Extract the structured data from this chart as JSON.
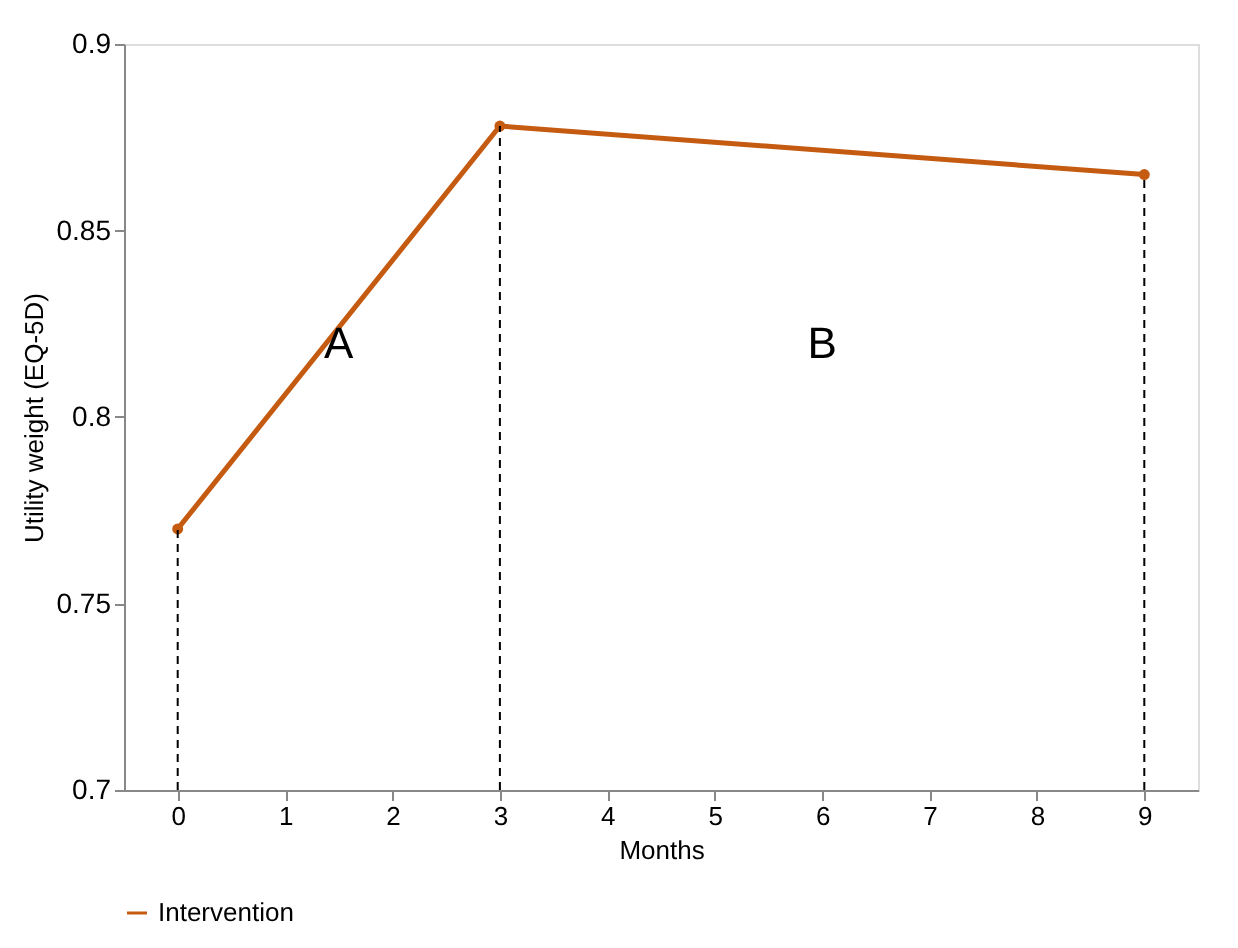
{
  "chart_data": {
    "type": "line",
    "xlabel": "Months",
    "ylabel": "Utility weight (EQ-5D)",
    "series": [
      {
        "name": "Intervention",
        "color": "#c55a11",
        "x": [
          0,
          3,
          9
        ],
        "values": [
          0.77,
          0.878,
          0.865
        ]
      }
    ],
    "xlim": [
      -0.5,
      9.5
    ],
    "xticks": [
      0,
      1,
      2,
      3,
      4,
      5,
      6,
      7,
      8,
      9
    ],
    "ylim": [
      0.7,
      0.9
    ],
    "yticks": [
      0.7,
      0.75,
      0.8,
      0.85,
      0.9
    ],
    "ref_lines": [
      {
        "axis": "x",
        "value": 0,
        "color": "#000000",
        "line_style": "dashed"
      },
      {
        "axis": "x",
        "value": 3,
        "color": "#000000",
        "line_style": "dashed"
      },
      {
        "axis": "x",
        "value": 9,
        "color": "#000000",
        "line_style": "dashed"
      }
    ],
    "annotations": [
      "A",
      "B"
    ],
    "grid": false,
    "legend": "bottom",
    "marker": "circle",
    "line_style": "solid"
  }
}
